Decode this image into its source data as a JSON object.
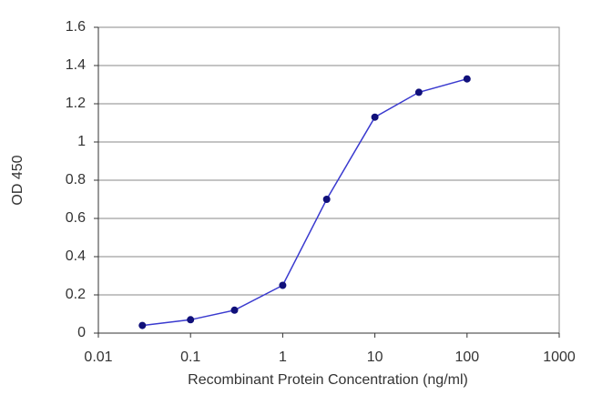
{
  "chart_data": {
    "type": "line",
    "x_label": "Recombinant Protein Concentration (ng/ml)",
    "y_label": "OD 450",
    "x": [
      0.03,
      0.1,
      0.3,
      1,
      3,
      10,
      30,
      100
    ],
    "values": [
      0.04,
      0.07,
      0.12,
      0.25,
      0.7,
      1.13,
      1.26,
      1.33
    ],
    "color": "#3a3acf",
    "marker_color": "#10107a",
    "xscale": "log",
    "xlim": [
      0.01,
      1000
    ],
    "xticks": [
      0.01,
      0.1,
      1,
      10,
      100,
      1000
    ],
    "ylim": [
      0,
      1.6
    ],
    "yticks": [
      0,
      0.2,
      0.4,
      0.6,
      0.8,
      1,
      1.2,
      1.4,
      1.6
    ],
    "grid": "y"
  }
}
